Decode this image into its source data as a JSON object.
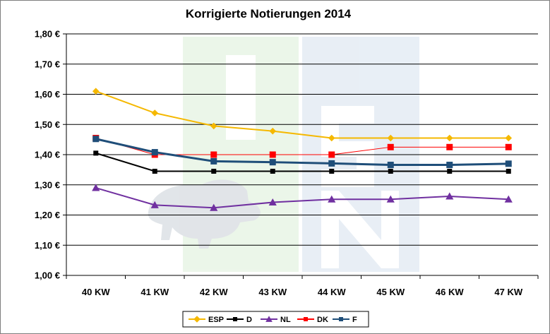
{
  "chart_data": {
    "type": "line",
    "title": "Korrigierte Notierungen 2014",
    "xlabel": "",
    "ylabel": "",
    "categories": [
      "40 KW",
      "41 KW",
      "42 KW",
      "43 KW",
      "44 KW",
      "45 KW",
      "46 KW",
      "47 KW"
    ],
    "ylim": [
      1.0,
      1.8
    ],
    "yticks": [
      "1,00 €",
      "1,10 €",
      "1,20 €",
      "1,30 €",
      "1,40 €",
      "1,50 €",
      "1,60 €",
      "1,70 €",
      "1,80 €"
    ],
    "grid": true,
    "legend": "bottom",
    "series": [
      {
        "name": "ESP",
        "color": "#f5b800",
        "marker": "diamond",
        "values": [
          1.61,
          1.538,
          1.495,
          1.478,
          1.455,
          1.455,
          1.455,
          1.455
        ]
      },
      {
        "name": "D",
        "color": "#000000",
        "marker": "square",
        "values": [
          1.405,
          1.345,
          1.345,
          1.345,
          1.345,
          1.345,
          1.345,
          1.345
        ]
      },
      {
        "name": "NL",
        "color": "#7030a0",
        "marker": "triangle",
        "values": [
          1.29,
          1.233,
          1.224,
          1.242,
          1.252,
          1.252,
          1.262,
          1.252
        ]
      },
      {
        "name": "DK",
        "color": "#ff0000",
        "marker": "square",
        "values": [
          1.455,
          1.4,
          1.4,
          1.4,
          1.4,
          1.425,
          1.425,
          1.425
        ]
      },
      {
        "name": "F",
        "color": "#1f4e79",
        "marker": "square",
        "values": [
          1.452,
          1.408,
          1.378,
          1.375,
          1.371,
          1.366,
          1.366,
          1.37
        ]
      }
    ]
  }
}
